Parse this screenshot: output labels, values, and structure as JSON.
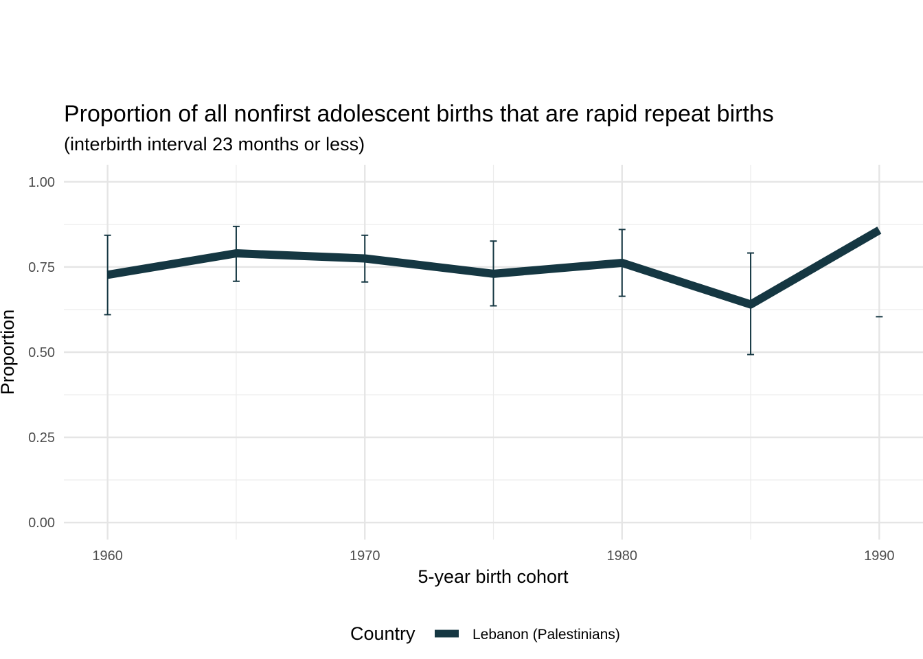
{
  "chart_data": {
    "type": "line",
    "title": "Proportion of all nonfirst adolescent births that are rapid repeat births",
    "subtitle": "(interbirth interval 23 months or less)",
    "xlabel": "5-year birth cohort",
    "ylabel": "Proportion",
    "xlim": [
      1958.3,
      1991.7
    ],
    "ylim": [
      -0.05,
      1.05
    ],
    "x_ticks": [
      1960,
      1970,
      1980,
      1990
    ],
    "x_tick_labels": [
      "1960",
      "1970",
      "1980",
      "1990"
    ],
    "y_ticks": [
      0,
      0.25,
      0.5,
      0.75,
      1.0
    ],
    "y_tick_labels": [
      "0.00",
      "0.25",
      "0.50",
      "0.75",
      "1.00"
    ],
    "grid": true,
    "legend": {
      "title": "Country",
      "position": "bottom"
    },
    "series": [
      {
        "name": "Lebanon (Palestinians)",
        "color": "#153742",
        "x": [
          1960,
          1965,
          1970,
          1975,
          1980,
          1985,
          1990
        ],
        "y": [
          0.727,
          0.79,
          0.775,
          0.73,
          0.762,
          0.64,
          0.858
        ],
        "error_low": [
          0.61,
          0.708,
          0.706,
          0.636,
          0.664,
          0.493,
          0.604
        ],
        "error_high": [
          0.843,
          0.869,
          0.843,
          0.826,
          0.86,
          0.791,
          null
        ]
      }
    ]
  }
}
